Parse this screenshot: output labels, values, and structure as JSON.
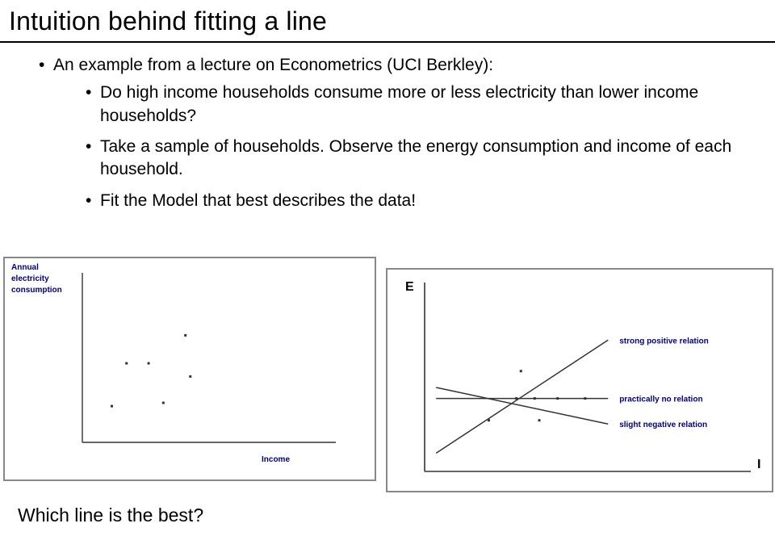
{
  "title": "Intuition behind fitting a line",
  "bullets": {
    "main": "An example from a lecture on Econometrics (UCI Berkley):",
    "sub": [
      "Do high income households consume more or less electricity than lower income households?",
      "Take a sample of households. Observe the energy consumption and income of each household.",
      "Fit the Model that best describes the data!"
    ]
  },
  "footer_question": "Which line is the best?",
  "chart_left": {
    "type": "scatter",
    "y_label_lines": [
      "Annual",
      "electricity",
      "consumption"
    ],
    "x_label": "Income",
    "label_fontsize": 10,
    "label_color": "#000080",
    "point_color": "#333333",
    "axis_color": "#333333",
    "background": "#ffffff",
    "frame_color": "#888888",
    "xlim": [
      0,
      100
    ],
    "ylim": [
      0,
      100
    ],
    "point_size": 3,
    "points": [
      {
        "x": 12,
        "y": 22
      },
      {
        "x": 18,
        "y": 48
      },
      {
        "x": 27,
        "y": 48
      },
      {
        "x": 33,
        "y": 24
      },
      {
        "x": 42,
        "y": 65
      },
      {
        "x": 44,
        "y": 40
      }
    ]
  },
  "chart_right": {
    "type": "line",
    "y_axis_letter": "E",
    "x_axis_letter": "I",
    "axis_letter_fontsize": 16,
    "axis_letter_weight": "bold",
    "label_fontsize": 10,
    "label_color": "#000080",
    "axis_color": "#333333",
    "point_color": "#333333",
    "line_color": "#333333",
    "line_width": 1.5,
    "background": "#ffffff",
    "frame_color": "#888888",
    "xlim": [
      0,
      100
    ],
    "ylim": [
      0,
      100
    ],
    "points": [
      {
        "x": 28,
        "y": 28
      },
      {
        "x": 40,
        "y": 40
      },
      {
        "x": 42,
        "y": 55
      },
      {
        "x": 48,
        "y": 40
      },
      {
        "x": 50,
        "y": 28
      },
      {
        "x": 58,
        "y": 40
      },
      {
        "x": 70,
        "y": 40
      }
    ],
    "lines": [
      {
        "label": "strong positive relation",
        "x1": 5,
        "y1": 10,
        "x2": 80,
        "y2": 72
      },
      {
        "label": "practically no relation",
        "x1": 5,
        "y1": 40,
        "x2": 80,
        "y2": 40
      },
      {
        "label": "slight negative relation",
        "x1": 5,
        "y1": 46,
        "x2": 80,
        "y2": 26
      }
    ]
  }
}
